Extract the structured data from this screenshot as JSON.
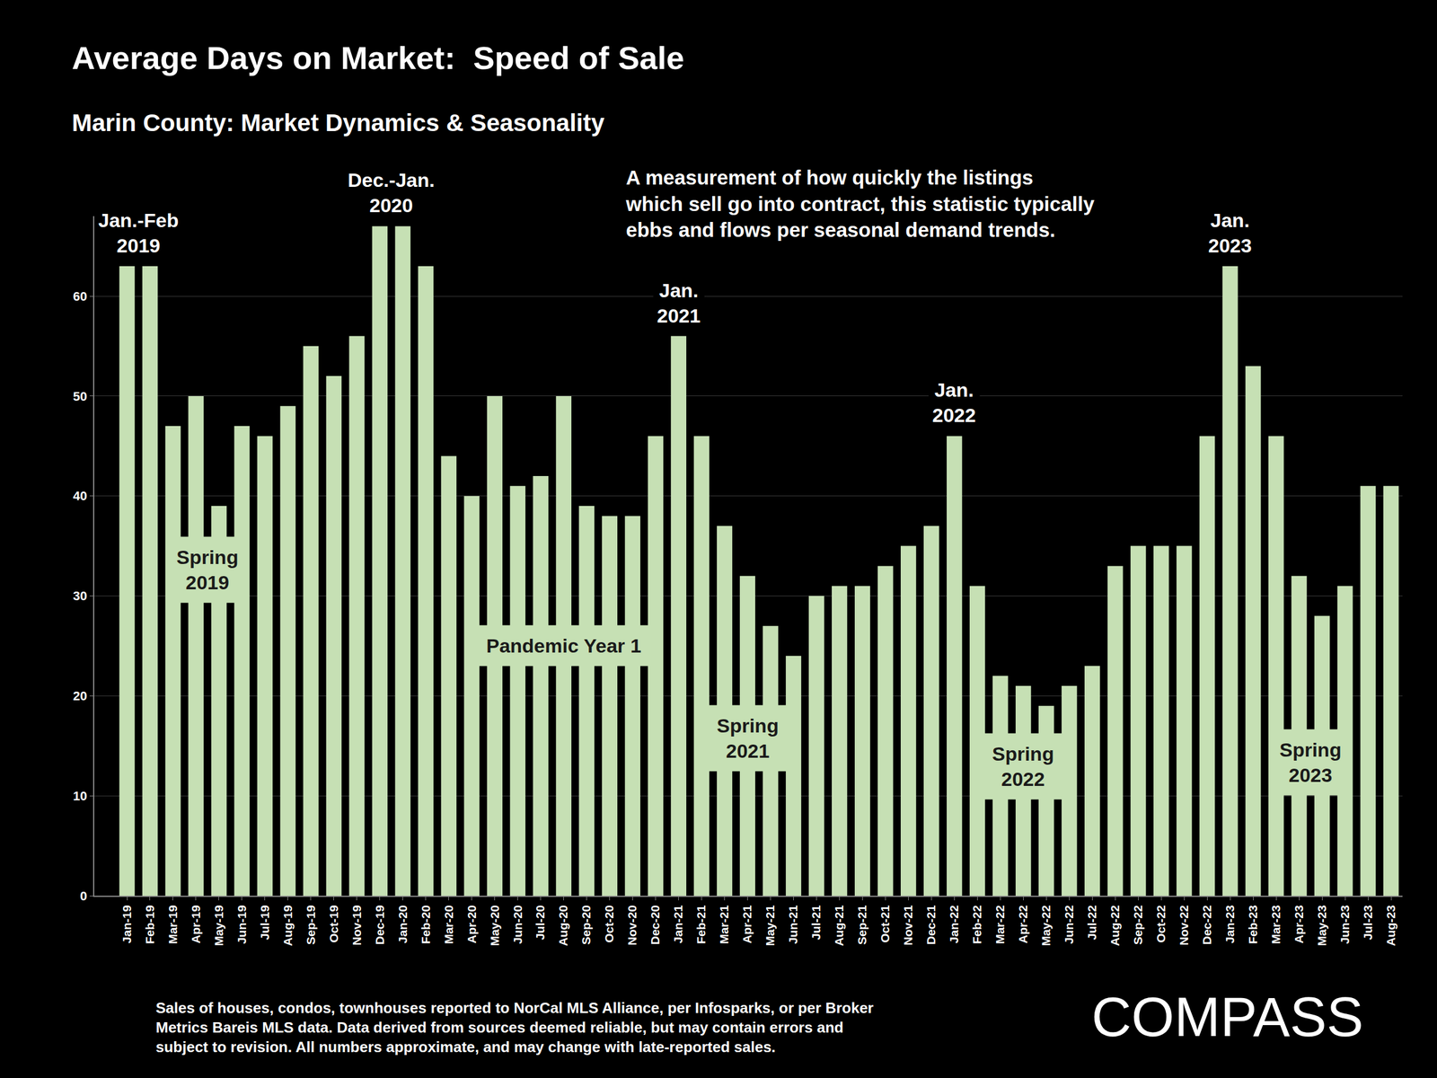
{
  "chart_data": {
    "type": "bar",
    "title": "Average Days on Market:  Speed of Sale",
    "subtitle": "Marin County: Market Dynamics & Seasonality",
    "categories": [
      "Jan-19",
      "Feb-19",
      "Mar-19",
      "Apr-19",
      "May-19",
      "Jun-19",
      "Jul-19",
      "Aug-19",
      "Sep-19",
      "Oct-19",
      "Nov-19",
      "Dec-19",
      "Jan-20",
      "Feb-20",
      "Mar-20",
      "Apr-20",
      "May-20",
      "Jun-20",
      "Jul-20",
      "Aug-20",
      "Sep-20",
      "Oct-20",
      "Nov-20",
      "Dec-20",
      "Jan-21",
      "Feb-21",
      "Mar-21",
      "Apr-21",
      "May-21",
      "Jun-21",
      "Jul-21",
      "Aug-21",
      "Sep-21",
      "Oct-21",
      "Nov-21",
      "Dec-21",
      "Jan-22",
      "Feb-22",
      "Mar-22",
      "Apr-22",
      "May-22",
      "Jun-22",
      "Jul-22",
      "Aug-22",
      "Sep-22",
      "Oct-22",
      "Nov-22",
      "Dec-22",
      "Jan-23",
      "Feb-23",
      "Mar-23",
      "Apr-23",
      "May-23",
      "Jun-23",
      "Jul-23",
      "Aug-23"
    ],
    "values": [
      63,
      63,
      47,
      50,
      39,
      47,
      46,
      49,
      55,
      52,
      56,
      67,
      67,
      63,
      44,
      40,
      50,
      41,
      42,
      50,
      39,
      38,
      38,
      46,
      56,
      46,
      37,
      32,
      27,
      24,
      30,
      31,
      31,
      33,
      35,
      37,
      46,
      31,
      22,
      21,
      19,
      21,
      23,
      33,
      35,
      35,
      35,
      46,
      63,
      53,
      46,
      32,
      28,
      31,
      41,
      41
    ],
    "color": "#c6e0b4",
    "ylim": [
      0,
      68
    ],
    "yticks": [
      0,
      10,
      20,
      30,
      40,
      50,
      60
    ],
    "grid": true,
    "bar_labels": [
      {
        "text": "Jan.-Feb\n2019",
        "x": [
          "Jan-19",
          "Feb-19"
        ]
      },
      {
        "text": "Dec.-Jan.\n2020",
        "x": [
          "Dec-19",
          "Jan-20"
        ]
      },
      {
        "text": "Jan.\n2021",
        "x": [
          "Jan-21"
        ]
      },
      {
        "text": "Jan.\n2022",
        "x": [
          "Jan-22"
        ]
      },
      {
        "text": "Jan.\n2023",
        "x": [
          "Jan-23"
        ]
      }
    ],
    "period_labels": [
      {
        "text": "Spring\n2019",
        "x": [
          "Apr-19",
          "May-19"
        ]
      },
      {
        "text": "Pandemic Year 1",
        "x": [
          "Aug-20"
        ]
      },
      {
        "text": "Spring\n2021",
        "x": [
          "Apr-21"
        ]
      },
      {
        "text": "Spring\n2022",
        "x": [
          "Apr-22"
        ]
      },
      {
        "text": "Spring\n2023",
        "x": [
          "Apr-23",
          "May-23"
        ]
      }
    ],
    "description": "A measurement of how quickly the listings\nwhich sell go into contract, this statistic typically\nebbs and flows per seasonal demand trends.",
    "footnote": "Sales of houses, condos, townhouses reported to NorCal MLS Alliance, per Infosparks, or per Broker\nMetrics Bareis MLS data. Data derived from sources deemed reliable, but may contain errors and\nsubject to revision. All numbers approximate, and may change with late-reported sales.",
    "logo": "COMPASS"
  }
}
